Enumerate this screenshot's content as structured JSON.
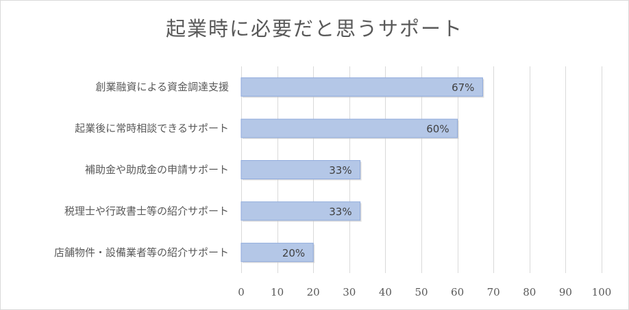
{
  "chart_data": {
    "type": "bar",
    "orientation": "horizontal",
    "title": "起業時に必要だと思うサポート",
    "categories": [
      "創業融資による資金調達支援",
      "起業後に常時相談できるサポート",
      "補助金や助成金の申請サポート",
      "税理士や行政書士等の紹介サポート",
      "店舗物件・設備業者等の紹介サポート"
    ],
    "values": [
      67,
      60,
      33,
      33,
      20
    ],
    "data_labels": [
      "67%",
      "60%",
      "33%",
      "33%",
      "20%"
    ],
    "xlim": [
      0,
      100
    ],
    "xticks": [
      0,
      10,
      20,
      30,
      40,
      50,
      60,
      70,
      80,
      90,
      100
    ],
    "grid": true,
    "legend": "none",
    "colors": {
      "bar_fill": "#b4c7e7",
      "bar_stroke": "#8faadc",
      "grid": "#d9d9d9",
      "text": "#595959"
    }
  }
}
